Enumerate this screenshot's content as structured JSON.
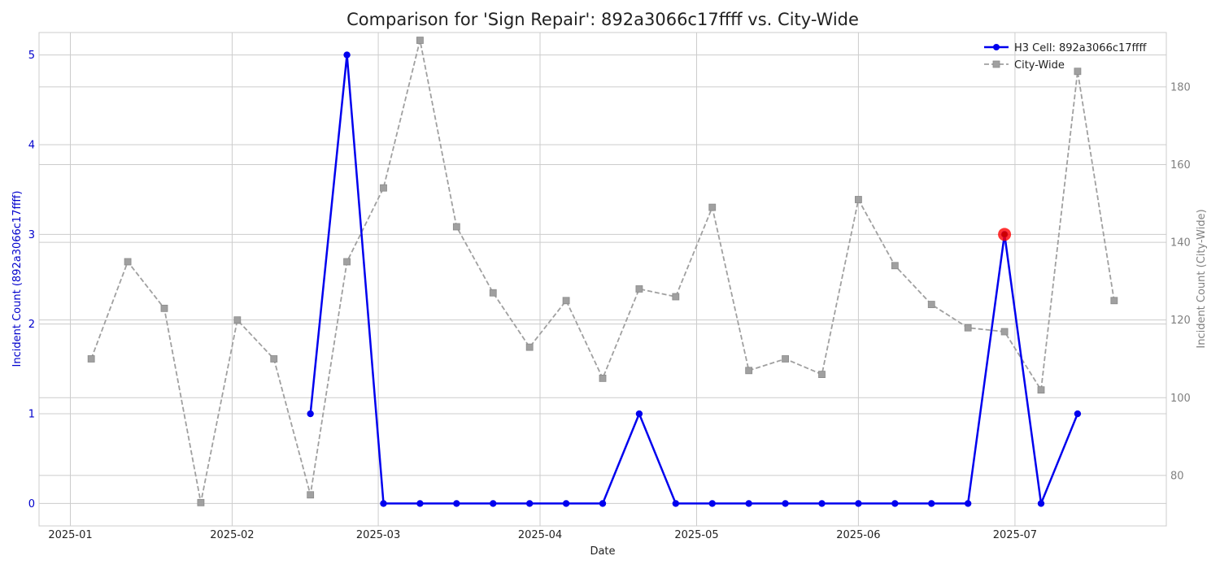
{
  "chart_data": {
    "type": "line",
    "title": "Comparison for 'Sign Repair': 892a3066c17ffff vs. City-Wide",
    "xlabel": "Date",
    "ylabel_left": "Incident Count (892a3066c17ffff)",
    "ylabel_right": "Incident Count (City-Wide)",
    "x_domain": [
      "2024-12-26",
      "2025-07-30"
    ],
    "x_ticks": [
      "2025-01-01",
      "2025-02-01",
      "2025-03-01",
      "2025-04-01",
      "2025-05-01",
      "2025-06-01",
      "2025-07-01"
    ],
    "x_tick_labels": [
      "2025-01",
      "2025-02",
      "2025-03",
      "2025-04",
      "2025-05",
      "2025-06",
      "2025-07"
    ],
    "ylim_left": [
      -0.25,
      5.25
    ],
    "yticks_left": [
      0,
      1,
      2,
      3,
      4,
      5
    ],
    "ylim_right": [
      67,
      194
    ],
    "yticks_right": [
      80,
      100,
      120,
      140,
      160,
      180
    ],
    "grid": true,
    "legend_position": "top-right",
    "colors": {
      "cell": "#0000ee",
      "city": "#a0a0a0",
      "highlight": "#ff0000",
      "left_axis": "#0000cc",
      "right_axis": "#808080"
    },
    "series": [
      {
        "name": "H3 Cell: 892a3066c17ffff",
        "axis": "left",
        "style": "solid-circle",
        "x": [
          "2025-02-16",
          "2025-02-23",
          "2025-03-02",
          "2025-03-09",
          "2025-03-16",
          "2025-03-23",
          "2025-03-30",
          "2025-04-06",
          "2025-04-13",
          "2025-04-20",
          "2025-04-27",
          "2025-05-04",
          "2025-05-11",
          "2025-05-18",
          "2025-05-25",
          "2025-06-01",
          "2025-06-08",
          "2025-06-15",
          "2025-06-22",
          "2025-06-29",
          "2025-07-06",
          "2025-07-13"
        ],
        "values": [
          1,
          5,
          0,
          0,
          0,
          0,
          0,
          0,
          0,
          1,
          0,
          0,
          0,
          0,
          0,
          0,
          0,
          0,
          0,
          3,
          0,
          1
        ]
      },
      {
        "name": "City-Wide",
        "axis": "right",
        "style": "dashed-square",
        "x": [
          "2025-01-05",
          "2025-01-12",
          "2025-01-19",
          "2025-01-26",
          "2025-02-02",
          "2025-02-09",
          "2025-02-16",
          "2025-02-23",
          "2025-03-02",
          "2025-03-09",
          "2025-03-16",
          "2025-03-23",
          "2025-03-30",
          "2025-04-06",
          "2025-04-13",
          "2025-04-20",
          "2025-04-27",
          "2025-05-04",
          "2025-05-11",
          "2025-05-18",
          "2025-05-25",
          "2025-06-01",
          "2025-06-08",
          "2025-06-15",
          "2025-06-22",
          "2025-06-29",
          "2025-07-06",
          "2025-07-13",
          "2025-07-20"
        ],
        "values": [
          110,
          135,
          123,
          73,
          120,
          110,
          75,
          135,
          154,
          192,
          144,
          127,
          113,
          125,
          105,
          128,
          126,
          149,
          107,
          110,
          106,
          151,
          134,
          124,
          118,
          117,
          102,
          184,
          125
        ]
      }
    ],
    "highlight": {
      "series": 0,
      "x": "2025-06-29",
      "value": 3
    }
  }
}
